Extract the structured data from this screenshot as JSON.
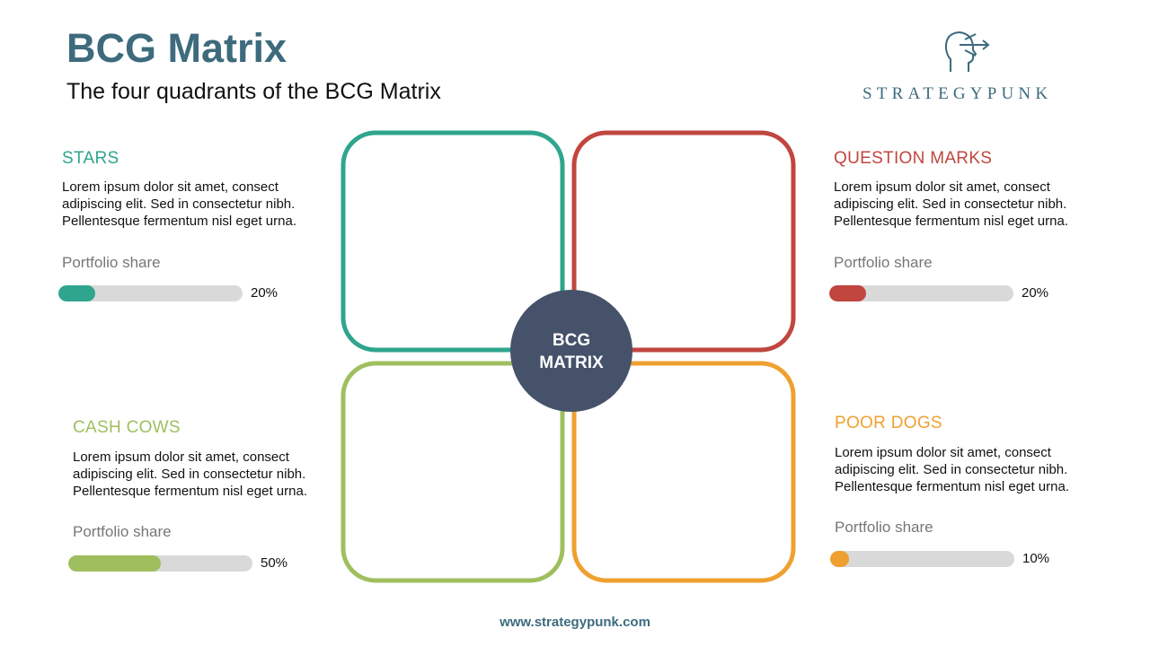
{
  "header": {
    "title": "BCG Matrix",
    "subtitle": "The four quadrants of the BCG Matrix"
  },
  "logo": {
    "text": "STRATEGYPUNK"
  },
  "center": {
    "lines": [
      "BCG",
      "MATRIX"
    ]
  },
  "quadrants": [
    {
      "title": "STARS",
      "color": "#2fa58e",
      "body": [
        "Lorem ipsum dolor sit amet, consect",
        "adipiscing elit. Sed in consectetur  nibh.",
        "Pellentesque  fermentum  nisl eget urna."
      ],
      "share_label": "Portfolio share",
      "share": {
        "value": 20,
        "label": "20%"
      }
    },
    {
      "title": "QUESTION  MARKS",
      "color": "#c0463f",
      "body": [
        "Lorem ipsum dolor sit amet, consect",
        "adipiscing elit. Sed in consectetur  nibh.",
        "Pellentesque  fermentum  nisl eget urna."
      ],
      "share_label": "Portfolio share",
      "share": {
        "value": 20,
        "label": "20%"
      }
    },
    {
      "title": "CASH  COWS",
      "color": "#9fbf5f",
      "body": [
        "Lorem ipsum dolor sit amet, consect",
        "adipiscing elit. Sed in consectetur  nibh.",
        "Pellentesque  fermentum  nisl eget urna."
      ],
      "share_label": "Portfolio share",
      "share": {
        "value": 50,
        "label": "50%"
      }
    },
    {
      "title": "POOR  DOGS",
      "color": "#f0a030",
      "body": [
        "Lorem ipsum dolor sit amet, consect",
        "adipiscing elit. Sed in consectetur  nibh.",
        "Pellentesque  fermentum  nisl eget urna."
      ],
      "share_label": "Portfolio share",
      "share": {
        "value": 10,
        "label": "10%"
      }
    }
  ],
  "footer": {
    "url": "www.strategypunk.com"
  }
}
